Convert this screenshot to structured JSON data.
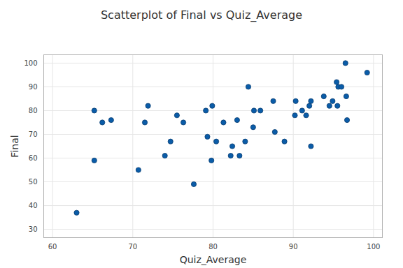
{
  "chart_data": {
    "type": "scatter",
    "title": "Scatterplot of Final vs Quiz_Average",
    "x_label": "Quiz_Average",
    "y_label": "Final",
    "x": [
      63.0,
      65.2,
      65.2,
      66.2,
      67.3,
      70.7,
      71.5,
      71.9,
      74.0,
      74.7,
      75.5,
      76.3,
      77.6,
      79.1,
      79.3,
      79.8,
      79.9,
      80.4,
      81.3,
      82.2,
      82.4,
      83.0,
      83.3,
      84.0,
      84.4,
      85.0,
      85.1,
      85.9,
      87.5,
      87.7,
      88.9,
      90.2,
      90.3,
      91.1,
      91.6,
      92.0,
      92.2,
      92.2,
      93.8,
      94.5,
      94.9,
      95.4,
      95.5,
      95.6,
      96.0,
      96.5,
      96.6,
      96.7,
      99.2
    ],
    "values": [
      37,
      59,
      80,
      75,
      76,
      55,
      75,
      82,
      61,
      67,
      78,
      75,
      49,
      80,
      69,
      59,
      82,
      67,
      75,
      61,
      65,
      76,
      61,
      67,
      90,
      73,
      80,
      80,
      84,
      71,
      67,
      78,
      84,
      80,
      78,
      82,
      84,
      65,
      86,
      82,
      84,
      92,
      82,
      90,
      90,
      100,
      86,
      76,
      96
    ],
    "color": "#0a5ca8",
    "marker": "circle",
    "xlim": [
      58.9,
      101.1
    ],
    "ylim": [
      26.5,
      103.5
    ],
    "xticks": [
      60,
      70,
      80,
      90,
      100
    ],
    "yticks": [
      30,
      40,
      50,
      60,
      70,
      80,
      90,
      100
    ],
    "grid": true
  }
}
